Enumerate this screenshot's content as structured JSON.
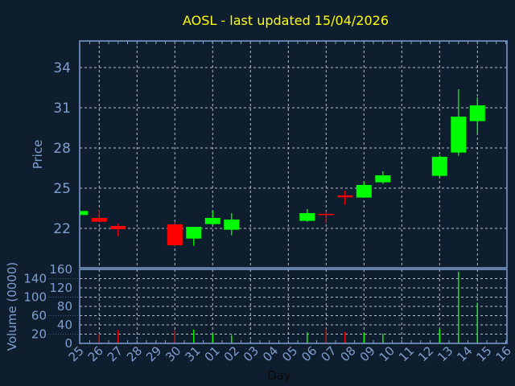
{
  "chart_data": [
    {
      "type": "candlestick",
      "title": "AOSL - last updated 15/04/2026",
      "xlabel": "Day",
      "ylabel": "Price",
      "ylim": [
        19.2,
        36
      ],
      "yticks": [
        22,
        25,
        28,
        31,
        34
      ],
      "grid": true,
      "xlim": [
        "2026-03-25",
        "2026-04-16"
      ],
      "xtick_labels": [
        "25",
        "26",
        "27",
        "28",
        "29",
        "30",
        "31",
        "01",
        "02",
        "03",
        "04",
        "05",
        "06",
        "07",
        "08",
        "09",
        "10",
        "11",
        "12",
        "13",
        "14",
        "15",
        "16"
      ],
      "colors": {
        "up": "#00ff00",
        "down": "#ff0000",
        "title": "#ffff00",
        "axis": "#7f9fcf",
        "background": "#0f1e2e"
      },
      "candles": [
        {
          "date": "2026-03-25",
          "open": 23.0,
          "high": 23.3,
          "low": 23.0,
          "close": 23.3
        },
        {
          "date": "2026-03-26",
          "open": 22.78,
          "high": 23.38,
          "low": 22.5,
          "close": 22.5
        },
        {
          "date": "2026-03-27",
          "open": 22.18,
          "high": 22.36,
          "low": 21.42,
          "close": 21.94
        },
        {
          "date": "2026-03-30",
          "open": 22.3,
          "high": 22.48,
          "low": 20.66,
          "close": 20.74
        },
        {
          "date": "2026-03-31",
          "open": 21.24,
          "high": 22.12,
          "low": 20.7,
          "close": 22.12
        },
        {
          "date": "2026-04-01",
          "open": 22.32,
          "high": 23.32,
          "low": 22.26,
          "close": 22.78
        },
        {
          "date": "2026-04-02",
          "open": 21.9,
          "high": 23.14,
          "low": 21.48,
          "close": 22.66
        },
        {
          "date": "2026-04-06",
          "open": 22.56,
          "high": 23.44,
          "low": 22.5,
          "close": 23.14
        },
        {
          "date": "2026-04-07",
          "open": 23.08,
          "high": 23.26,
          "low": 22.36,
          "close": 23.0
        },
        {
          "date": "2026-04-08",
          "open": 24.46,
          "high": 24.82,
          "low": 23.76,
          "close": 24.32
        },
        {
          "date": "2026-04-09",
          "open": 24.3,
          "high": 25.44,
          "low": 24.3,
          "close": 25.24
        },
        {
          "date": "2026-04-10",
          "open": 25.44,
          "high": 26.26,
          "low": 25.32,
          "close": 25.96
        },
        {
          "date": "2026-04-13",
          "open": 25.92,
          "high": 27.44,
          "low": 25.84,
          "close": 27.34
        },
        {
          "date": "2026-04-14",
          "open": 27.66,
          "high": 32.38,
          "low": 27.42,
          "close": 30.34
        },
        {
          "date": "2026-04-15",
          "open": 30.0,
          "high": 31.78,
          "low": 29.1,
          "close": 31.18
        }
      ]
    },
    {
      "type": "bar",
      "ylabel": "Volume (0000)",
      "ylim": [
        0,
        160
      ],
      "yticks": [
        0,
        20,
        40,
        60,
        80,
        100,
        120,
        140,
        160
      ],
      "grid": true,
      "bars": [
        {
          "date": "2026-03-26",
          "value": 21,
          "color": "#ff0000"
        },
        {
          "date": "2026-03-27",
          "value": 29,
          "color": "#ff0000"
        },
        {
          "date": "2026-03-30",
          "value": 29,
          "color": "#ff0000"
        },
        {
          "date": "2026-03-31",
          "value": 30,
          "color": "#00ff00"
        },
        {
          "date": "2026-04-01",
          "value": 21,
          "color": "#00ff00"
        },
        {
          "date": "2026-04-02",
          "value": 18,
          "color": "#00ff00"
        },
        {
          "date": "2026-04-06",
          "value": 24,
          "color": "#00ff00"
        },
        {
          "date": "2026-04-07",
          "value": 31,
          "color": "#ff0000"
        },
        {
          "date": "2026-04-08",
          "value": 25,
          "color": "#ff0000"
        },
        {
          "date": "2026-04-09",
          "value": 22,
          "color": "#00ff00"
        },
        {
          "date": "2026-04-10",
          "value": 21,
          "color": "#00ff00"
        },
        {
          "date": "2026-04-13",
          "value": 31,
          "color": "#00ff00"
        },
        {
          "date": "2026-04-14",
          "value": 155,
          "color": "#00ff00"
        },
        {
          "date": "2026-04-15",
          "value": 88,
          "color": "#00ff00"
        }
      ]
    }
  ]
}
